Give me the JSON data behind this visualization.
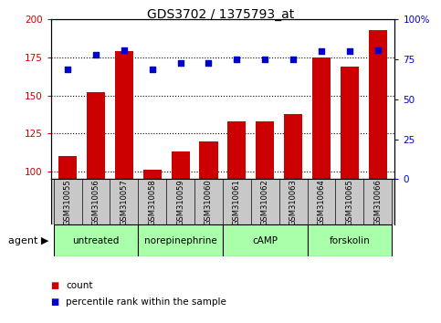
{
  "title": "GDS3702 / 1375793_at",
  "samples": [
    "GSM310055",
    "GSM310056",
    "GSM310057",
    "GSM310058",
    "GSM310059",
    "GSM310060",
    "GSM310061",
    "GSM310062",
    "GSM310063",
    "GSM310064",
    "GSM310065",
    "GSM310066"
  ],
  "counts": [
    110,
    152,
    179,
    101,
    113,
    120,
    133,
    133,
    138,
    175,
    169,
    193
  ],
  "percentiles": [
    69,
    78,
    81,
    69,
    73,
    73,
    75,
    75,
    75,
    80,
    80,
    81
  ],
  "ylim_left": [
    95,
    200
  ],
  "ylim_right": [
    0,
    100
  ],
  "yticks_left": [
    100,
    125,
    150,
    175,
    200
  ],
  "yticks_right": [
    0,
    25,
    50,
    75,
    100
  ],
  "bar_color": "#cc0000",
  "dot_color": "#0000cc",
  "grid_color": "#000000",
  "agent_groups": [
    {
      "label": "untreated",
      "start": 0,
      "end": 3
    },
    {
      "label": "norepinephrine",
      "start": 3,
      "end": 6
    },
    {
      "label": "cAMP",
      "start": 6,
      "end": 9
    },
    {
      "label": "forskolin",
      "start": 9,
      "end": 12
    }
  ],
  "agent_group_color": "#aaffaa",
  "xlabel_agent": "agent",
  "legend_count": "count",
  "legend_percentile": "percentile rank within the sample",
  "background_color": "#ffffff",
  "tick_area_color": "#c8c8c8"
}
